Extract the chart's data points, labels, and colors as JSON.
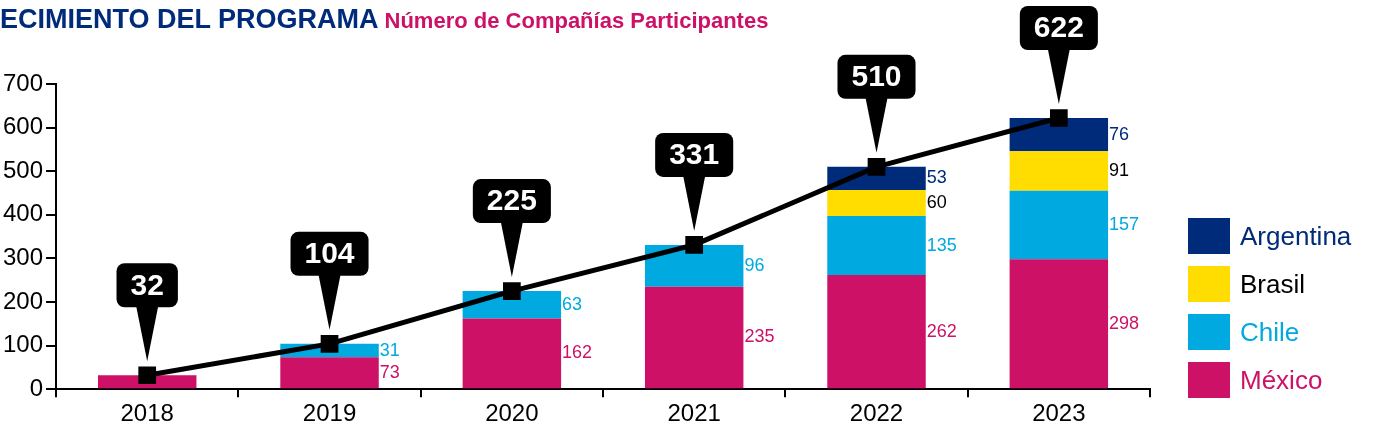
{
  "chart_data": {
    "type": "bar",
    "title": "ECIMIENTO DEL PROGRAMA",
    "subtitle": "Número de Compañías Participantes",
    "categories": [
      "2018",
      "2019",
      "2020",
      "2021",
      "2022",
      "2023"
    ],
    "stacked": true,
    "legend": "right",
    "grid": false,
    "ylim": [
      0,
      700
    ],
    "yticks": [
      0,
      100,
      200,
      300,
      400,
      500,
      600,
      700
    ],
    "series": [
      {
        "name": "México",
        "color": "#cc1166",
        "values": [
          32,
          73,
          162,
          235,
          262,
          298
        ],
        "value_labels": [
          null,
          "73",
          "162",
          "235",
          "262",
          "298"
        ]
      },
      {
        "name": "Chile",
        "color": "#00a9e0",
        "values": [
          null,
          31,
          63,
          96,
          135,
          157
        ],
        "value_labels": [
          null,
          "31",
          "63",
          "96",
          "135",
          "157"
        ]
      },
      {
        "name": "Brasil",
        "color": "#ffdd00",
        "values": [
          null,
          null,
          null,
          null,
          60,
          91
        ],
        "value_labels": [
          null,
          null,
          null,
          null,
          "60",
          "91"
        ]
      },
      {
        "name": "Argentina",
        "color": "#002a7a",
        "values": [
          null,
          null,
          null,
          null,
          53,
          76
        ],
        "value_labels": [
          null,
          null,
          null,
          null,
          "53",
          "76"
        ]
      },
      {
        "type": "line",
        "color": "#000000",
        "marker": "square",
        "values": [
          32,
          104,
          225,
          331,
          510,
          622
        ],
        "value_labels": [
          "32",
          "104",
          "225",
          "331",
          "510",
          "622"
        ]
      }
    ]
  }
}
